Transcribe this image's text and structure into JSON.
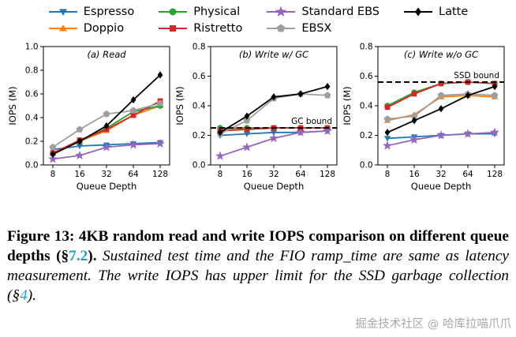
{
  "legend": {
    "items": [
      {
        "label": "Espresso",
        "color": "#1f77b4",
        "marker": "triangle-down"
      },
      {
        "label": "Doppio",
        "color": "#ff7f0e",
        "marker": "triangle-up"
      },
      {
        "label": "Physical",
        "color": "#2ca02c",
        "marker": "circle"
      },
      {
        "label": "Ristretto",
        "color": "#d62728",
        "marker": "square"
      },
      {
        "label": "Standard EBS",
        "color": "#9467bd",
        "marker": "star"
      },
      {
        "label": "EBSX",
        "color": "#9e9e9e",
        "marker": "pentagon"
      },
      {
        "label": "Latte",
        "color": "#000000",
        "marker": "diamond"
      }
    ],
    "columns": [
      [
        0,
        1
      ],
      [
        2,
        3
      ],
      [
        4,
        5
      ],
      [
        6
      ]
    ]
  },
  "chart_data": [
    {
      "id": "read",
      "type": "line",
      "title": "(a) Read",
      "xlabel": "Queue Depth",
      "ylabel": "IOPS (M)",
      "categories": [
        "8",
        "16",
        "32",
        "64",
        "128"
      ],
      "ylim": [
        0,
        1.0
      ],
      "yticks": [
        0,
        0.2,
        0.4,
        0.6,
        0.8,
        1.0
      ],
      "yticklabels": [
        "0.0",
        "0.2",
        "0.4",
        "0.6",
        "0.8",
        "1.0"
      ],
      "series": [
        {
          "name": "Espresso",
          "values": [
            0.13,
            0.16,
            0.17,
            0.18,
            0.19
          ]
        },
        {
          "name": "Doppio",
          "values": [
            0.1,
            0.2,
            0.29,
            0.42,
            0.5
          ]
        },
        {
          "name": "Physical",
          "values": [
            0.1,
            0.2,
            0.31,
            0.45,
            0.5
          ]
        },
        {
          "name": "Ristretto",
          "values": [
            0.1,
            0.21,
            0.3,
            0.42,
            0.54
          ]
        },
        {
          "name": "Standard EBS",
          "values": [
            0.05,
            0.08,
            0.15,
            0.17,
            0.18
          ]
        },
        {
          "name": "EBSX",
          "values": [
            0.15,
            0.3,
            0.43,
            0.46,
            0.52
          ]
        },
        {
          "name": "Latte",
          "values": [
            0.09,
            0.2,
            0.33,
            0.55,
            0.76
          ]
        }
      ]
    },
    {
      "id": "write-gc",
      "type": "line",
      "title": "(b) Write w/ GC",
      "xlabel": "Queue Depth",
      "ylabel": "IOPS (M)",
      "categories": [
        "8",
        "16",
        "32",
        "64",
        "128"
      ],
      "ylim": [
        0,
        0.8
      ],
      "yticks": [
        0,
        0.2,
        0.4,
        0.6,
        0.8
      ],
      "yticklabels": [
        "0.0",
        "0.2",
        "0.4",
        "0.6",
        "0.8"
      ],
      "bound": {
        "label": "GC bound",
        "value": 0.25
      },
      "series": [
        {
          "name": "Espresso",
          "values": [
            0.2,
            0.21,
            0.22,
            0.22,
            0.23
          ]
        },
        {
          "name": "Doppio",
          "values": [
            0.24,
            0.25,
            0.25,
            0.25,
            0.25
          ]
        },
        {
          "name": "Physical",
          "values": [
            0.25,
            0.25,
            0.25,
            0.25,
            0.25
          ]
        },
        {
          "name": "Ristretto",
          "values": [
            0.23,
            0.24,
            0.25,
            0.25,
            0.25
          ]
        },
        {
          "name": "Standard EBS",
          "values": [
            0.06,
            0.12,
            0.18,
            0.22,
            0.23
          ]
        },
        {
          "name": "EBSX",
          "values": [
            0.21,
            0.3,
            0.45,
            0.48,
            0.47
          ]
        },
        {
          "name": "Latte",
          "values": [
            0.22,
            0.33,
            0.46,
            0.48,
            0.53
          ]
        }
      ]
    },
    {
      "id": "write-no-gc",
      "type": "line",
      "title": "(c) Write w/o GC",
      "xlabel": "Queue Depth",
      "ylabel": "IOPS (M)",
      "categories": [
        "8",
        "16",
        "32",
        "64",
        "128"
      ],
      "ylim": [
        0,
        0.8
      ],
      "yticks": [
        0,
        0.2,
        0.4,
        0.6,
        0.8
      ],
      "yticklabels": [
        "0.0",
        "0.2",
        "0.4",
        "0.6",
        "0.8"
      ],
      "bound": {
        "label": "SSD bound",
        "value": 0.56
      },
      "series": [
        {
          "name": "Espresso",
          "values": [
            0.18,
            0.19,
            0.2,
            0.21,
            0.21
          ]
        },
        {
          "name": "Doppio",
          "values": [
            0.3,
            0.34,
            0.46,
            0.47,
            0.46
          ]
        },
        {
          "name": "Physical",
          "values": [
            0.4,
            0.49,
            0.55,
            0.56,
            0.55
          ]
        },
        {
          "name": "Ristretto",
          "values": [
            0.39,
            0.48,
            0.55,
            0.56,
            0.55
          ]
        },
        {
          "name": "Standard EBS",
          "values": [
            0.13,
            0.17,
            0.2,
            0.21,
            0.22
          ]
        },
        {
          "name": "EBSX",
          "values": [
            0.31,
            0.33,
            0.47,
            0.48,
            0.47
          ]
        },
        {
          "name": "Latte",
          "values": [
            0.22,
            0.3,
            0.38,
            0.47,
            0.53
          ]
        }
      ]
    }
  ],
  "caption": {
    "bold_prefix": "Figure 13: 4KB random read and write IOPS comparison on different queue depths (§",
    "bold_link": "7.2",
    "bold_suffix": ").",
    "italic_prefix": "Sustained test time and the FIO ramp_time are same as latency measurement. The write IOPS has upper limit for the SSD garbage collection (§",
    "italic_link": "4",
    "italic_suffix": ").",
    "link_color": "#1f9ec9"
  },
  "watermark": {
    "text": "掘金技术社区 @ 哈库拉喵爪爪",
    "color": "#a8a8a8"
  }
}
